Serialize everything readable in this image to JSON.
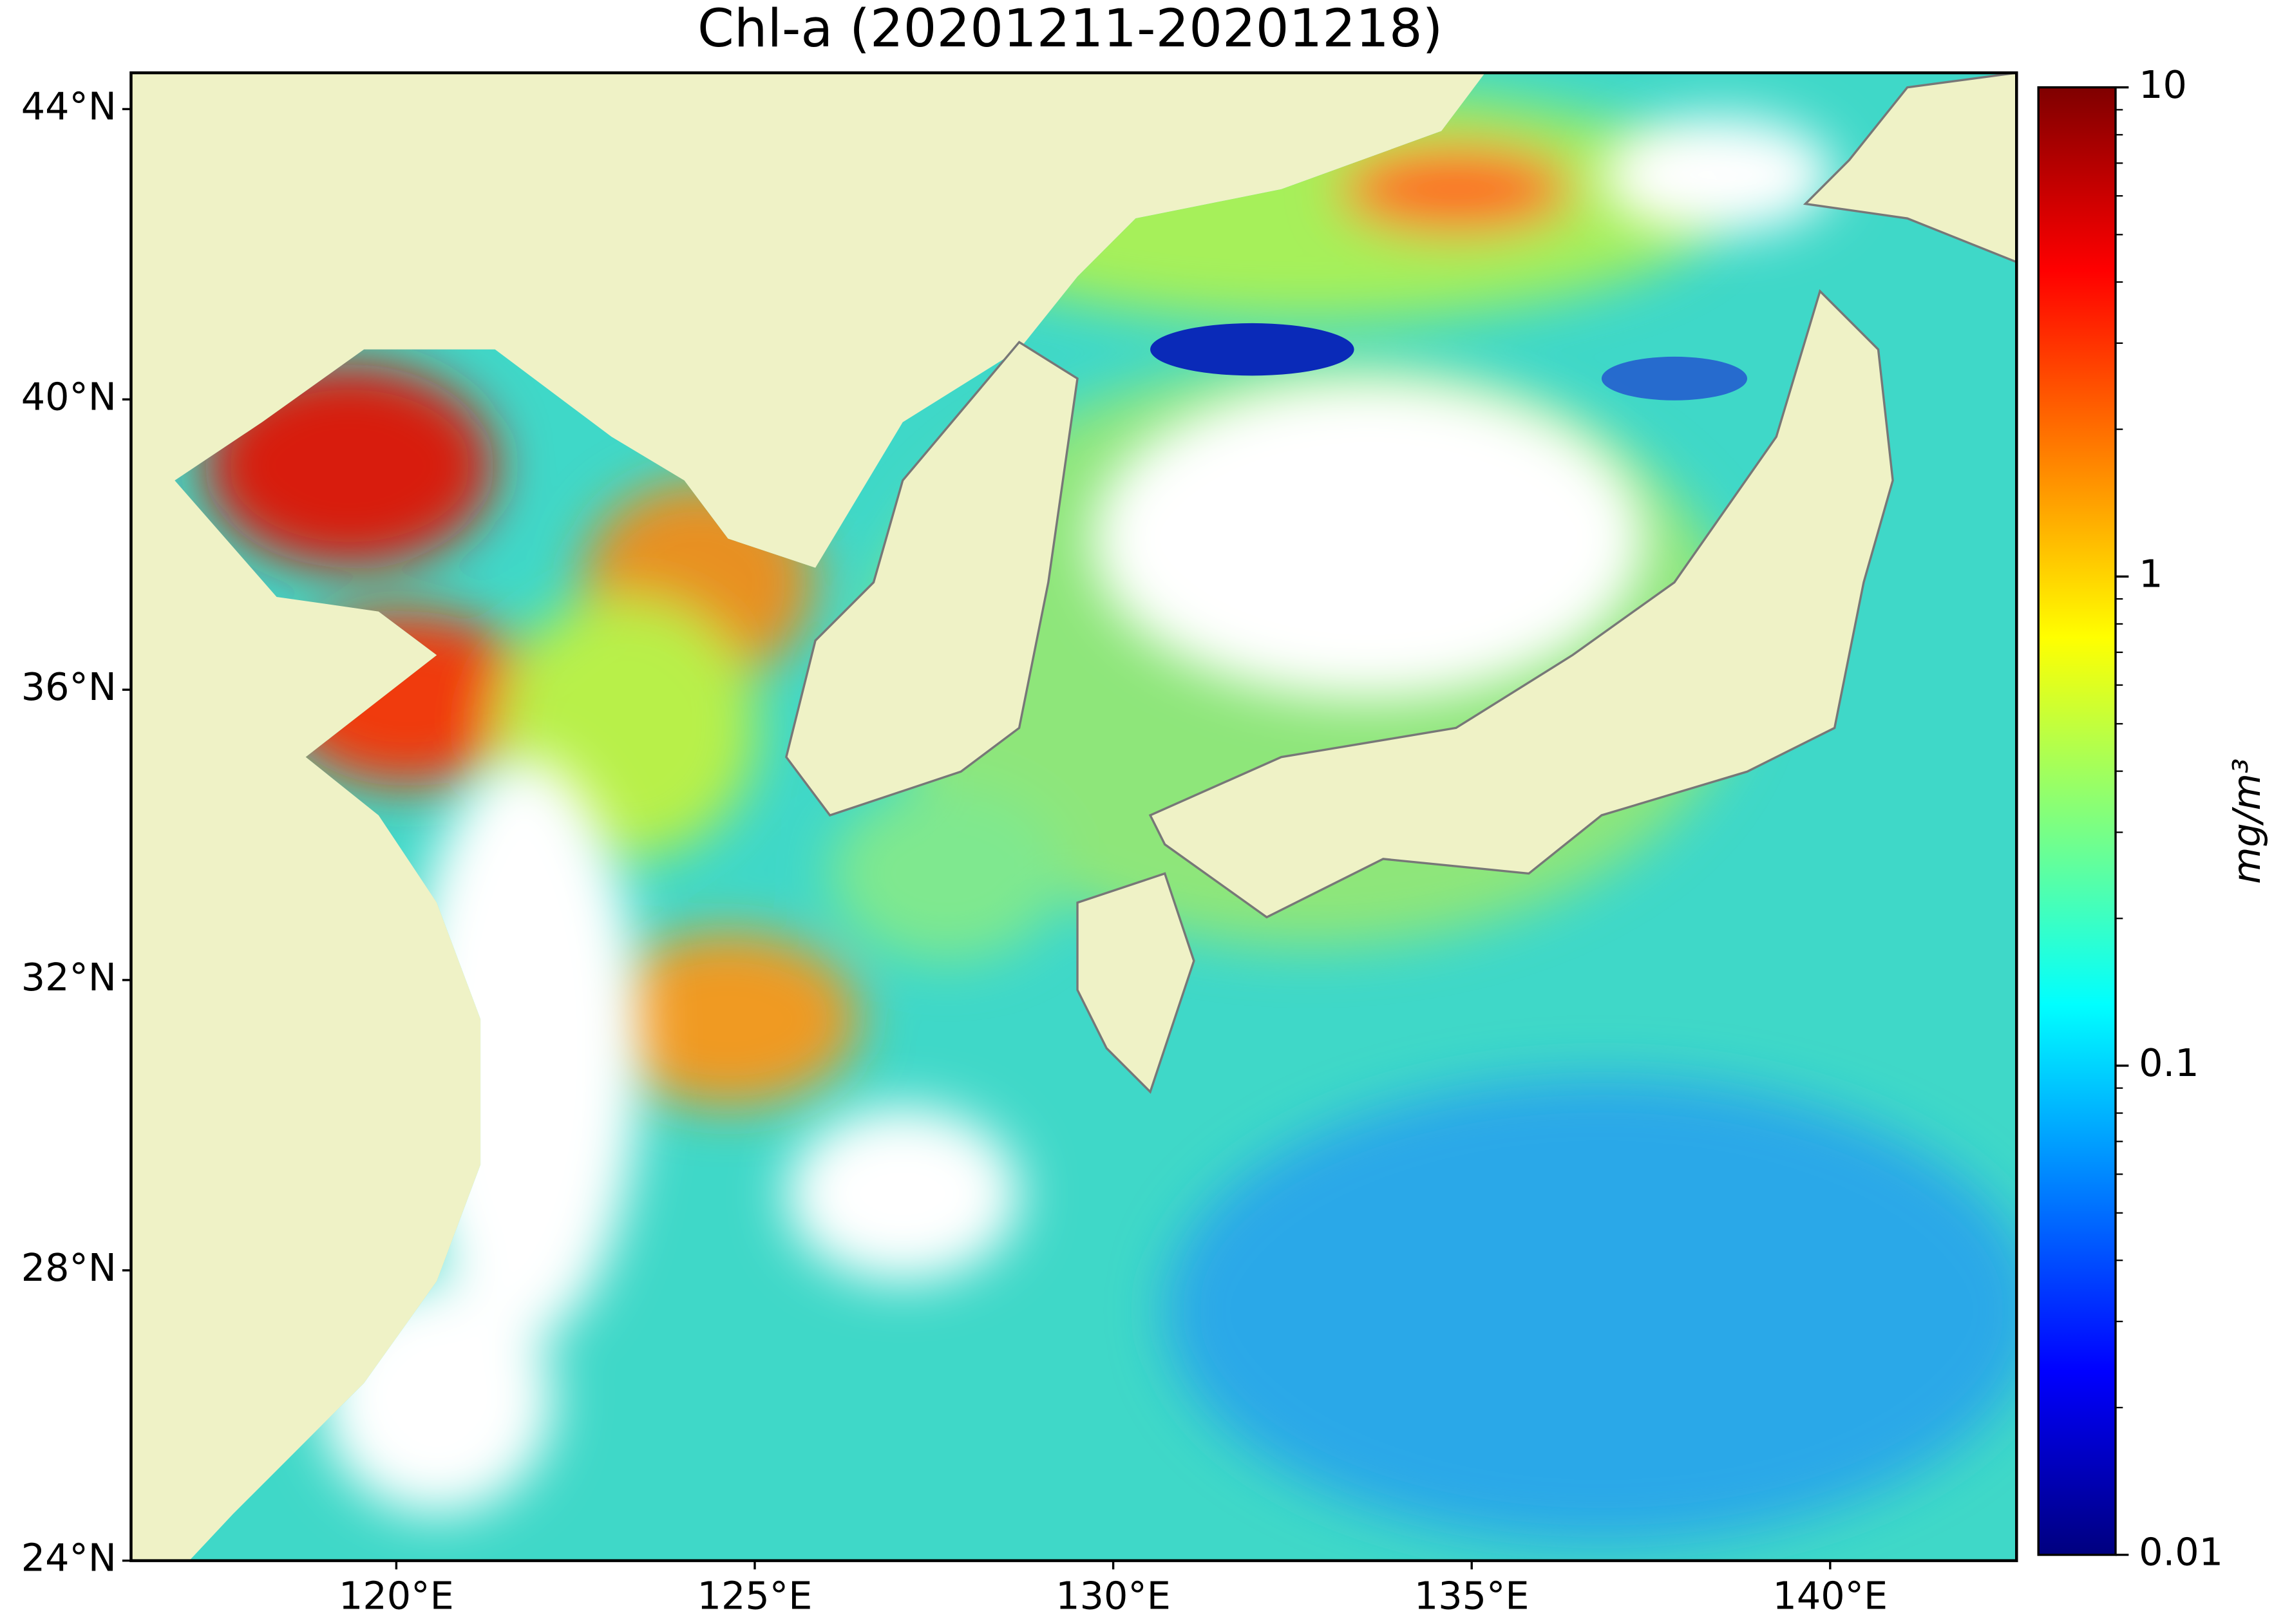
{
  "chart_data": {
    "type": "map",
    "title": "Chl-a (20201211-20201218)",
    "xlim": [
      116.3,
      142.6
    ],
    "ylim": [
      24,
      44.5
    ],
    "xticks": [
      {
        "value": 120,
        "label": "120°E"
      },
      {
        "value": 125,
        "label": "125°E"
      },
      {
        "value": 130,
        "label": "130°E"
      },
      {
        "value": 135,
        "label": "135°E"
      },
      {
        "value": 140,
        "label": "140°E"
      }
    ],
    "yticks": [
      {
        "value": 24,
        "label": "24°N"
      },
      {
        "value": 28,
        "label": "28°N"
      },
      {
        "value": 32,
        "label": "32°N"
      },
      {
        "value": 36,
        "label": "36°N"
      },
      {
        "value": 40,
        "label": "40°N"
      },
      {
        "value": 44,
        "label": "44°N"
      }
    ],
    "colorbar": {
      "label": "mg/m³",
      "scale": "log",
      "colormap": "jet",
      "lim": [
        0.01,
        10
      ],
      "ticks": [
        0.01,
        0.1,
        1,
        10
      ]
    }
  }
}
